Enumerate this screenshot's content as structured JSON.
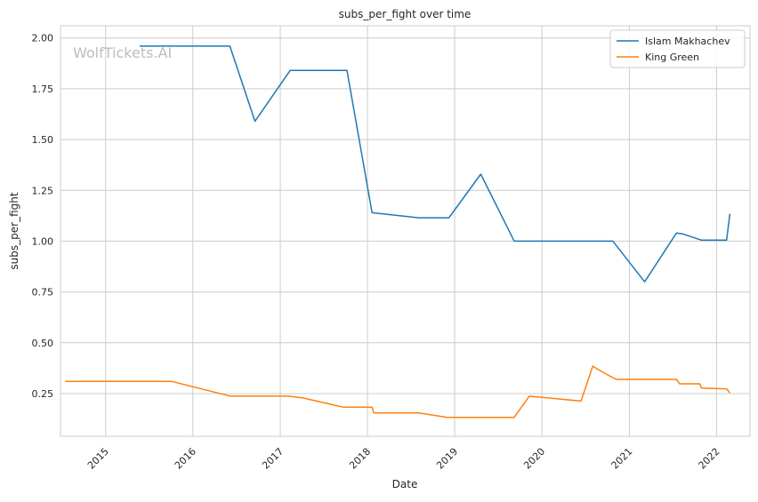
{
  "watermark": "WolfTickets.AI",
  "chart_data": {
    "type": "line",
    "title": "subs_per_fight over time",
    "xlabel": "Date",
    "ylabel": "subs_per_fight",
    "x_ticks": [
      "2015",
      "2016",
      "2017",
      "2018",
      "2019",
      "2020",
      "2021",
      "2022"
    ],
    "y_ticks": [
      "0.25",
      "0.50",
      "0.75",
      "1.00",
      "1.25",
      "1.50",
      "1.75",
      "2.00"
    ],
    "xlim": [
      "2014-06-26",
      "2022-05-21"
    ],
    "ylim": [
      0.04,
      2.06
    ],
    "grid": true,
    "legend_position": "top-right",
    "series": [
      {
        "name": "Islam Makhachev",
        "color": "#1f77b4",
        "points": [
          [
            "2015-05-23",
            1.96
          ],
          [
            "2016-06-04",
            1.96
          ],
          [
            "2016-09-17",
            1.59
          ],
          [
            "2017-02-11",
            1.84
          ],
          [
            "2017-10-07",
            1.84
          ],
          [
            "2018-01-20",
            1.14
          ],
          [
            "2018-08-04",
            1.115
          ],
          [
            "2018-12-08",
            1.115
          ],
          [
            "2019-04-20",
            1.33
          ],
          [
            "2019-09-07",
            1.0
          ],
          [
            "2020-10-24",
            1.0
          ],
          [
            "2021-03-06",
            0.8
          ],
          [
            "2021-07-17",
            1.04
          ],
          [
            "2021-08-14",
            1.035
          ],
          [
            "2021-10-30",
            1.005
          ],
          [
            "2022-02-12",
            1.005
          ],
          [
            "2022-02-26",
            1.135
          ]
        ]
      },
      {
        "name": "King Green",
        "color": "#ff7f0e",
        "points": [
          [
            "2014-07-16",
            0.31
          ],
          [
            "2015-10-03",
            0.31
          ],
          [
            "2016-06-04",
            0.238
          ],
          [
            "2017-02-04",
            0.238
          ],
          [
            "2017-04-08",
            0.228
          ],
          [
            "2017-09-23",
            0.183
          ],
          [
            "2018-01-20",
            0.183
          ],
          [
            "2018-01-27",
            0.155
          ],
          [
            "2018-08-04",
            0.155
          ],
          [
            "2018-11-30",
            0.133
          ],
          [
            "2019-09-07",
            0.133
          ],
          [
            "2019-11-09",
            0.237
          ],
          [
            "2020-06-13",
            0.213
          ],
          [
            "2020-08-01",
            0.385
          ],
          [
            "2020-09-12",
            0.355
          ],
          [
            "2020-11-07",
            0.32
          ],
          [
            "2021-07-17",
            0.32
          ],
          [
            "2021-07-31",
            0.298
          ],
          [
            "2021-10-23",
            0.298
          ],
          [
            "2021-10-30",
            0.277
          ],
          [
            "2022-02-12",
            0.273
          ],
          [
            "2022-02-26",
            0.253
          ]
        ]
      }
    ]
  }
}
